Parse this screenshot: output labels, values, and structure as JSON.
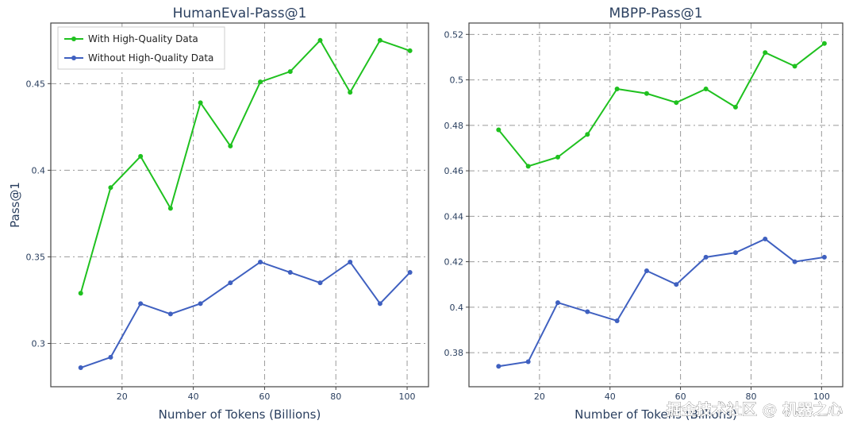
{
  "chart_data": [
    {
      "type": "line",
      "title": "HumanEval-Pass@1",
      "xlabel": "Number of Tokens (Billions)",
      "ylabel": "Pass@1",
      "xlim": [
        0,
        106
      ],
      "ylim": [
        0.275,
        0.485
      ],
      "xticks": [
        20,
        40,
        60,
        80,
        100
      ],
      "xtick_labels": [
        "20",
        "40",
        "60",
        "80",
        "100"
      ],
      "yticks": [
        0.3,
        0.35,
        0.4,
        0.45
      ],
      "ytick_labels": [
        "0.3",
        "0.35",
        "0.4",
        "0.45"
      ],
      "grid": true,
      "legend": "top-left",
      "x": [
        8.4,
        16.8,
        25.2,
        33.6,
        42,
        50.4,
        58.8,
        67.2,
        75.6,
        84,
        92.4,
        100.8
      ],
      "series": [
        {
          "name": "With High-Quality Data",
          "color": "#1fc11f",
          "values": [
            0.329,
            0.39,
            0.408,
            0.378,
            0.439,
            0.414,
            0.451,
            0.457,
            0.475,
            0.445,
            0.475,
            0.469
          ]
        },
        {
          "name": "Without High-Quality Data",
          "color": "#3f60c0",
          "values": [
            0.286,
            0.292,
            0.323,
            0.317,
            0.323,
            0.335,
            0.347,
            0.341,
            0.335,
            0.347,
            0.323,
            0.341
          ]
        }
      ]
    },
    {
      "type": "line",
      "title": "MBPP-Pass@1",
      "xlabel": "Number of Tokens (Billions)",
      "ylabel": "",
      "xlim": [
        0,
        106
      ],
      "ylim": [
        0.365,
        0.525
      ],
      "xticks": [
        20,
        40,
        60,
        80,
        100
      ],
      "xtick_labels": [
        "20",
        "40",
        "60",
        "80",
        "100"
      ],
      "yticks": [
        0.38,
        0.4,
        0.42,
        0.44,
        0.46,
        0.48,
        0.5,
        0.52
      ],
      "ytick_labels": [
        "0.38",
        "0.4",
        "0.42",
        "0.44",
        "0.46",
        "0.48",
        "0.5",
        "0.52"
      ],
      "grid": true,
      "legend": "none",
      "x": [
        8.4,
        16.8,
        25.2,
        33.6,
        42,
        50.4,
        58.8,
        67.2,
        75.6,
        84,
        92.4,
        100.8
      ],
      "series": [
        {
          "name": "With High-Quality Data",
          "color": "#1fc11f",
          "values": [
            0.478,
            0.462,
            0.466,
            0.476,
            0.496,
            0.494,
            0.49,
            0.496,
            0.488,
            0.512,
            0.506,
            0.516
          ]
        },
        {
          "name": "Without High-Quality Data",
          "color": "#3f60c0",
          "values": [
            0.374,
            0.376,
            0.402,
            0.398,
            0.394,
            0.416,
            0.41,
            0.422,
            0.424,
            0.43,
            0.42,
            0.422
          ]
        }
      ]
    }
  ],
  "watermark": "掘金技术社区 @ 机器之心"
}
